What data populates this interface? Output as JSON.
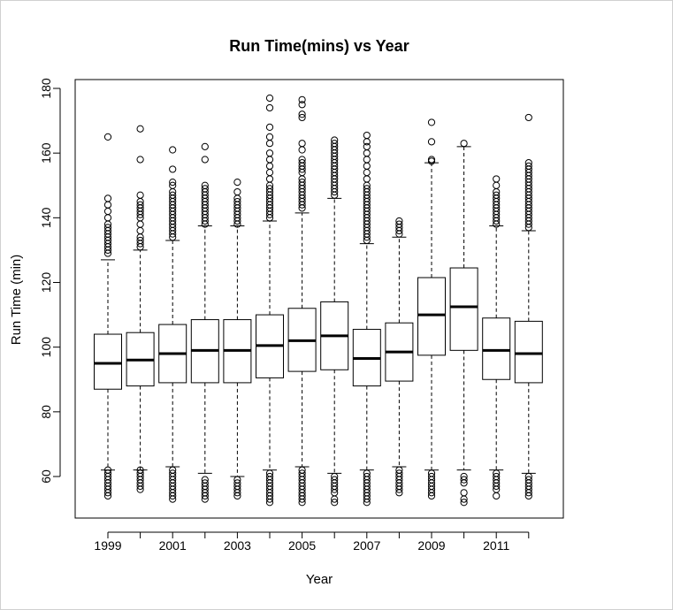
{
  "chart_data": {
    "type": "boxplot",
    "title": "Run Time(mins) vs Year",
    "xlabel": "Year",
    "ylabel": "Run Time (min)",
    "ylim": [
      50,
      182
    ],
    "yticks": [
      60,
      80,
      100,
      120,
      140,
      160,
      180
    ],
    "categories": [
      "1999",
      "2000",
      "2001",
      "2002",
      "2003",
      "2004",
      "2005",
      "2006",
      "2007",
      "2008",
      "2009",
      "2010",
      "2011",
      "2012"
    ],
    "x_tick_labels": [
      "1999",
      "",
      "2001",
      "",
      "2003",
      "",
      "2005",
      "",
      "2007",
      "",
      "2009",
      "",
      "2011",
      ""
    ],
    "grid": false,
    "legend": "none",
    "boxes": [
      {
        "year": "1999",
        "whisker_low": 62,
        "q1": 87,
        "median": 95,
        "q3": 104,
        "whisker_high": 127,
        "outliers": [
          54,
          55,
          56,
          57,
          58,
          59,
          60,
          61,
          62,
          129,
          130,
          131,
          132,
          133,
          134,
          135,
          136,
          137,
          138,
          140,
          142,
          144,
          146,
          165
        ]
      },
      {
        "year": "2000",
        "whisker_low": 62,
        "q1": 88,
        "median": 96,
        "q3": 104.5,
        "whisker_high": 130,
        "outliers": [
          56,
          57,
          58,
          59,
          60,
          61,
          62,
          131,
          132,
          133,
          134,
          136,
          138,
          140,
          141,
          142,
          143,
          144,
          145,
          147,
          158,
          167.5
        ]
      },
      {
        "year": "2001",
        "whisker_low": 63,
        "q1": 89,
        "median": 98,
        "q3": 107,
        "whisker_high": 133,
        "outliers": [
          53,
          54,
          55,
          56,
          57,
          58,
          59,
          60,
          61,
          62,
          134,
          135,
          136,
          137,
          138,
          139,
          140,
          141,
          142,
          143,
          144,
          145,
          146,
          147,
          148,
          150,
          151,
          155,
          161
        ]
      },
      {
        "year": "2002",
        "whisker_low": 61,
        "q1": 89,
        "median": 99,
        "q3": 108.5,
        "whisker_high": 137.5,
        "outliers": [
          53,
          54,
          55,
          56,
          57,
          58,
          59,
          138,
          139,
          140,
          141,
          142,
          143,
          144,
          145,
          146,
          147,
          148,
          149,
          150,
          158,
          162
        ]
      },
      {
        "year": "2003",
        "whisker_low": 60,
        "q1": 89,
        "median": 99,
        "q3": 108.5,
        "whisker_high": 137.5,
        "outliers": [
          54,
          55,
          56,
          57,
          58,
          59,
          138,
          139,
          140,
          141,
          142,
          143,
          144,
          145,
          146,
          148,
          151
        ]
      },
      {
        "year": "2004",
        "whisker_low": 62,
        "q1": 90.5,
        "median": 100.5,
        "q3": 110,
        "whisker_high": 139,
        "outliers": [
          52,
          53,
          54,
          55,
          56,
          57,
          58,
          59,
          60,
          61,
          140,
          141,
          142,
          143,
          144,
          145,
          146,
          147,
          148,
          149,
          150,
          152,
          154,
          156,
          158,
          160,
          163,
          165,
          168,
          174,
          177
        ]
      },
      {
        "year": "2005",
        "whisker_low": 63,
        "q1": 92.5,
        "median": 102,
        "q3": 112,
        "whisker_high": 141.5,
        "outliers": [
          52,
          53,
          54,
          55,
          56,
          57,
          58,
          59,
          60,
          61,
          62,
          143,
          144,
          145,
          146,
          147,
          148,
          149,
          150,
          151,
          152,
          154,
          155,
          156,
          157,
          158,
          161,
          163,
          171,
          172,
          175,
          176.5
        ]
      },
      {
        "year": "2006",
        "whisker_low": 61,
        "q1": 93,
        "median": 103.5,
        "q3": 114,
        "whisker_high": 146,
        "outliers": [
          52,
          53,
          55,
          56,
          57,
          58,
          59,
          60,
          147,
          148,
          149,
          150,
          151,
          152,
          153,
          154,
          155,
          156,
          157,
          158,
          159,
          160,
          161,
          162,
          163,
          164
        ]
      },
      {
        "year": "2007",
        "whisker_low": 62,
        "q1": 88,
        "median": 96.5,
        "q3": 105.5,
        "whisker_high": 132,
        "outliers": [
          52,
          53,
          54,
          55,
          56,
          57,
          58,
          59,
          60,
          61,
          133,
          134,
          135,
          136,
          137,
          138,
          139,
          140,
          141,
          142,
          143,
          144,
          145,
          146,
          147,
          148,
          149,
          150,
          152,
          154,
          156,
          158,
          160,
          162,
          163.5,
          165.5
        ]
      },
      {
        "year": "2008",
        "whisker_low": 63,
        "q1": 89.5,
        "median": 98.5,
        "q3": 107.5,
        "whisker_high": 134,
        "outliers": [
          55,
          56,
          57,
          58,
          59,
          60,
          61,
          62,
          135,
          136,
          137,
          138,
          139
        ]
      },
      {
        "year": "2009",
        "whisker_low": 62,
        "q1": 97.5,
        "median": 110,
        "q3": 121.5,
        "whisker_high": 157,
        "outliers": [
          54,
          55,
          56,
          57,
          58,
          59,
          60,
          61,
          157.5,
          158,
          163.5,
          169.5
        ]
      },
      {
        "year": "2010",
        "whisker_low": 62,
        "q1": 99,
        "median": 112.5,
        "q3": 124.5,
        "whisker_high": 162,
        "outliers": [
          52,
          53,
          55,
          58,
          59,
          60,
          163
        ]
      },
      {
        "year": "2011",
        "whisker_low": 62,
        "q1": 90,
        "median": 99,
        "q3": 109,
        "whisker_high": 137.5,
        "outliers": [
          54,
          56,
          57,
          58,
          59,
          60,
          61,
          138,
          139,
          140,
          141,
          142,
          143,
          144,
          145,
          146,
          147,
          148,
          150,
          152
        ]
      },
      {
        "year": "2012",
        "whisker_low": 61,
        "q1": 89,
        "median": 98,
        "q3": 108,
        "whisker_high": 136,
        "outliers": [
          54,
          55,
          56,
          57,
          58,
          59,
          60,
          137,
          138,
          139,
          140,
          141,
          142,
          143,
          144,
          145,
          146,
          147,
          148,
          149,
          150,
          151,
          152,
          153,
          154,
          155,
          156,
          157,
          171
        ]
      }
    ]
  }
}
